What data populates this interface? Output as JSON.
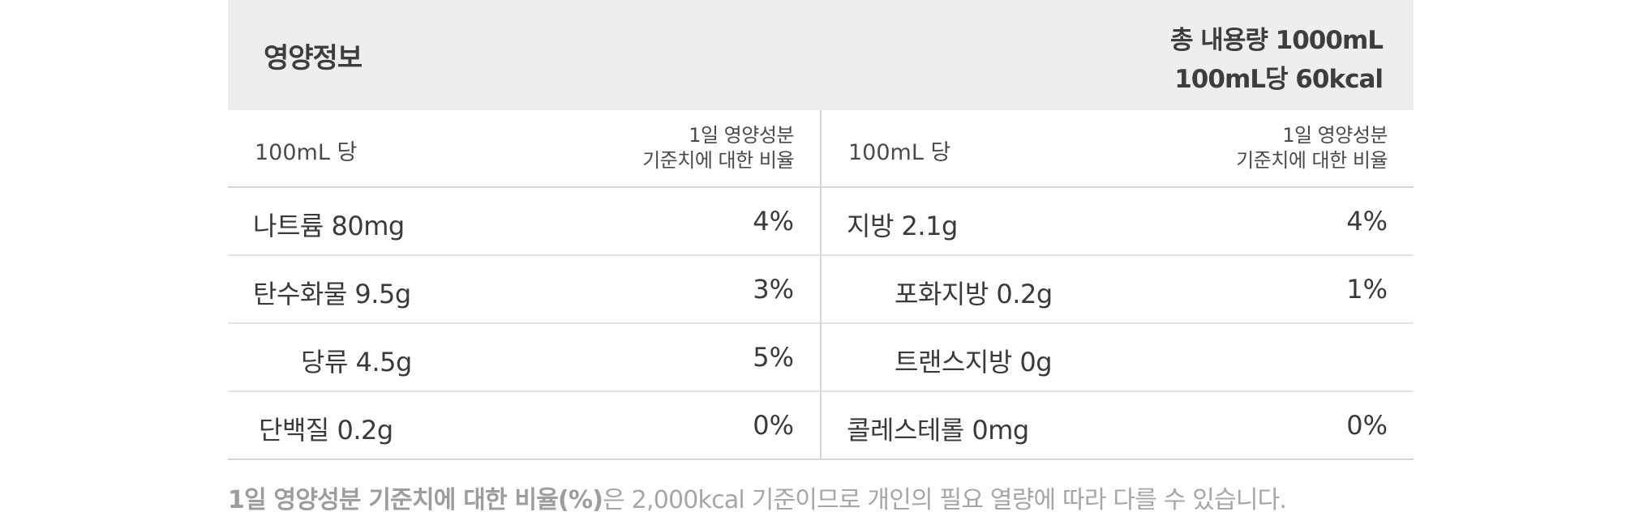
{
  "header": {
    "title": "영양정보",
    "total": "총 내용량 1000mL",
    "kcal": "100mL당 60kcal"
  },
  "columns": [
    {
      "per": "100mL 당",
      "ratio_line1": "1일 영양성분",
      "ratio_line2": "기준치에 대한 비율",
      "rows": [
        {
          "label": "나트륨 80mg",
          "pct": "4%"
        },
        {
          "label": "탄수화물 9.5g",
          "pct": "3%"
        },
        {
          "label": "당류 4.5g",
          "pct": "5%"
        },
        {
          "label": "단백질 0.2g",
          "pct": "0%"
        }
      ]
    },
    {
      "per": "100mL 당",
      "ratio_line1": "1일 영양성분",
      "ratio_line2": "기준치에 대한 비율",
      "rows": [
        {
          "label": "지방 2.1g",
          "pct": "4%"
        },
        {
          "label": "포화지방 0.2g",
          "pct": "1%"
        },
        {
          "label": "트랜스지방 0g",
          "pct": ""
        },
        {
          "label": "콜레스테롤 0mg",
          "pct": "0%"
        }
      ]
    }
  ],
  "footnote": {
    "bold": "1일 영양성분 기준치에 대한 비율(%)",
    "rest": "은 2,000kcal 기준이므로 개인의 필요 열량에 따라 다를 수 있습니다."
  }
}
